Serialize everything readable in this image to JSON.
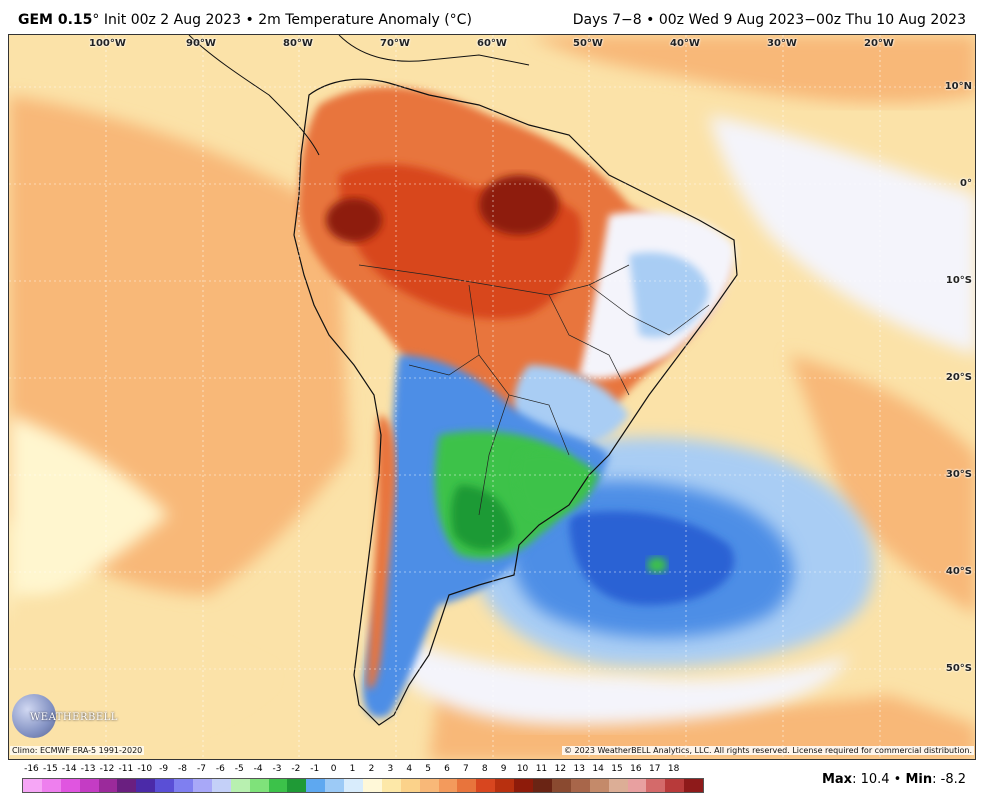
{
  "header": {
    "model": "GEM 0.15",
    "init": "° Init 00z 2 Aug 2023 • 2m Temperature Anomaly (°C)",
    "valid": "Days 7−8 • 00z Wed 9 Aug 2023−00z Thu 10 Aug 2023"
  },
  "map": {
    "lon_labels": [
      "100°W",
      "90°W",
      "80°W",
      "70°W",
      "60°W",
      "50°W",
      "40°W",
      "30°W",
      "20°W"
    ],
    "lat_labels": [
      "10°N",
      "0°",
      "10°S",
      "20°S",
      "30°S",
      "40°S",
      "50°S"
    ],
    "colors": {
      "ocean_warm": "#f8b878",
      "ocean_mild": "#fbe2a8",
      "ocean_pale": "#fff6cf",
      "neutral": "#f4f4fb",
      "hot": "#d8461f",
      "very_hot": "#8e1b0a",
      "cool_light": "#a9cdf4",
      "cool": "#4e8ee6",
      "cold": "#2b62d4",
      "green": "#3cc24a",
      "green_dark": "#1f9a36"
    }
  },
  "footer": {
    "climo": "Climo: ECMWF ERA-5 1991-2020",
    "copyright": "© 2023 WeatherBELL Analytics, LLC. All rights reserved. License required for commercial distribution.",
    "logo": "WEATHERBELL",
    "max_label": "Max",
    "max_value": ": 10.4 • ",
    "min_label": "Min",
    "min_value": ": -8.2"
  },
  "colorbar": {
    "ticks": [
      "-16",
      "-15",
      "-14",
      "-13",
      "-12",
      "-11",
      "-10",
      "-9",
      "-8",
      "-7",
      "-6",
      "-5",
      "-4",
      "-3",
      "-2",
      "-1",
      "0",
      "1",
      "2",
      "3",
      "4",
      "5",
      "6",
      "7",
      "8",
      "9",
      "10",
      "11",
      "12",
      "13",
      "14",
      "15",
      "16",
      "17",
      "18"
    ],
    "colors": [
      "#f6a6f6",
      "#ee7fee",
      "#e055e0",
      "#c43cc4",
      "#9b2a9b",
      "#6a1f80",
      "#4b2aa8",
      "#5a4fd6",
      "#7f7ff0",
      "#a8a8f8",
      "#c4d0f8",
      "#b8f0b0",
      "#7fe27a",
      "#3cc24a",
      "#1f9a36",
      "#5ea8f0",
      "#9ccaf6",
      "#d8ecfc",
      "#fff8d8",
      "#fde8a8",
      "#fbd28a",
      "#f8b878",
      "#f39a5c",
      "#e8743c",
      "#d8461f",
      "#b8300f",
      "#8e1b0a",
      "#6a2414",
      "#8a4a30",
      "#a8664a",
      "#c48a6a",
      "#dcae96",
      "#e8a0a0",
      "#d46a6a",
      "#b83a3a",
      "#8e1a1a"
    ]
  }
}
